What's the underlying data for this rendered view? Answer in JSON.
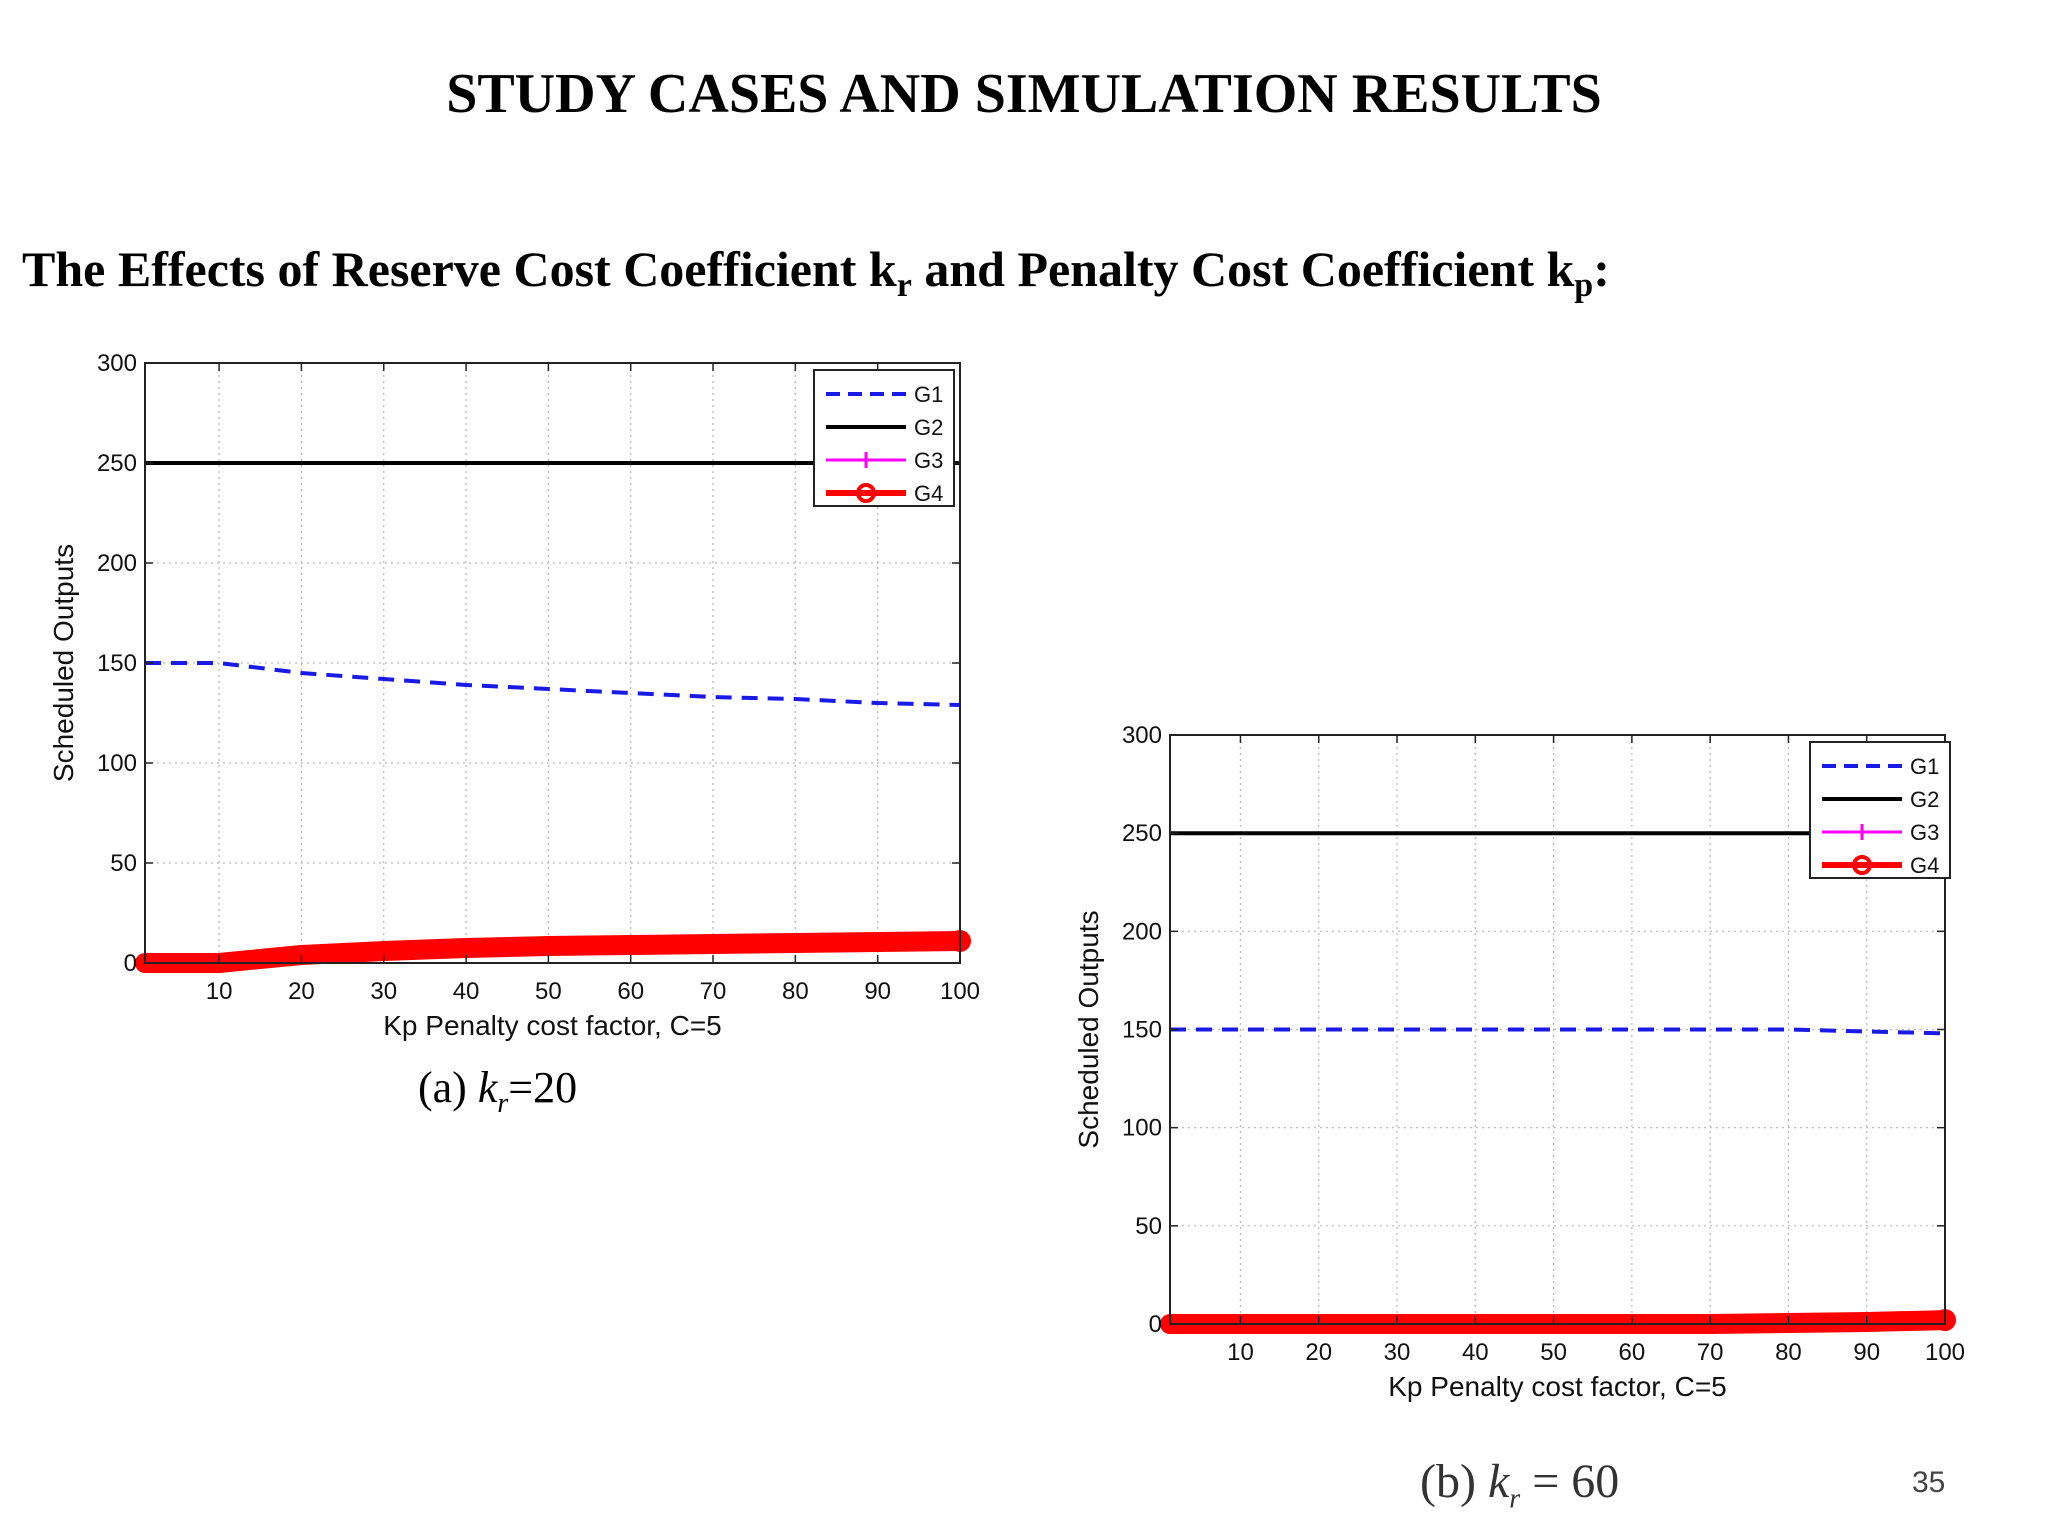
{
  "slide": {
    "title": "STUDY CASES AND SIMULATION RESULTS",
    "subtitle_pre": "The Effects of  Reserve Cost Coefficient k",
    "subtitle_sub1": "r",
    "subtitle_mid": " and Penalty Cost Coefficient k",
    "subtitle_sub2": "p",
    "subtitle_post": ":",
    "caption_a_prefix": "(a) ",
    "caption_a_k": "k",
    "caption_a_sub": "r",
    "caption_a_value": "=20",
    "caption_b_prefix": "(b) ",
    "caption_b_k": "k",
    "caption_b_sub": "r",
    "caption_b_value": " = 60",
    "page_number": "35"
  },
  "colors": {
    "G1": "#1a1ae6",
    "G2": "#000000",
    "G3": "#ff00ff",
    "G4": "#ff0000"
  },
  "chart_data": [
    {
      "type": "line",
      "xlabel": "Kp Penalty cost factor, C=5",
      "ylabel": "Scheduled Outputs",
      "xlim": [
        1,
        100
      ],
      "ylim": [
        0,
        300
      ],
      "xticks": [
        10,
        20,
        30,
        40,
        50,
        60,
        70,
        80,
        90,
        100
      ],
      "yticks": [
        0,
        50,
        100,
        150,
        200,
        250,
        300
      ],
      "grid": true,
      "legend": "top-right",
      "x": [
        1,
        10,
        20,
        30,
        40,
        50,
        60,
        70,
        80,
        90,
        100
      ],
      "series": [
        {
          "name": "G1",
          "values": [
            150,
            150,
            145,
            142,
            139,
            137,
            135,
            133,
            132,
            130,
            129
          ]
        },
        {
          "name": "G2",
          "values": [
            250,
            250,
            250,
            250,
            250,
            250,
            250,
            250,
            250,
            250,
            250
          ]
        },
        {
          "name": "G3",
          "values": [
            0,
            0,
            4,
            6,
            7.5,
            8.5,
            9,
            9.5,
            10,
            10.5,
            11
          ]
        },
        {
          "name": "G4",
          "values": [
            0,
            0,
            4,
            6,
            7.5,
            8.5,
            9,
            9.5,
            10,
            10.5,
            11
          ]
        }
      ]
    },
    {
      "type": "line",
      "xlabel": "Kp Penalty cost factor, C=5",
      "ylabel": "Scheduled Outputs",
      "xlim": [
        1,
        100
      ],
      "ylim": [
        0,
        300
      ],
      "xticks": [
        10,
        20,
        30,
        40,
        50,
        60,
        70,
        80,
        90,
        100
      ],
      "yticks": [
        0,
        50,
        100,
        150,
        200,
        250,
        300
      ],
      "grid": true,
      "legend": "top-right",
      "x": [
        1,
        10,
        20,
        30,
        40,
        50,
        60,
        70,
        80,
        90,
        100
      ],
      "series": [
        {
          "name": "G1",
          "values": [
            150,
            150,
            150,
            150,
            150,
            150,
            150,
            150,
            150,
            149,
            148
          ]
        },
        {
          "name": "G2",
          "values": [
            250,
            250,
            250,
            250,
            250,
            250,
            250,
            250,
            250,
            250,
            250
          ]
        },
        {
          "name": "G3",
          "values": [
            0,
            0,
            0,
            0,
            0,
            0,
            0,
            0,
            0.5,
            1,
            2
          ]
        },
        {
          "name": "G4",
          "values": [
            0,
            0,
            0,
            0,
            0,
            0,
            0,
            0,
            0.5,
            1,
            2
          ]
        }
      ]
    }
  ]
}
